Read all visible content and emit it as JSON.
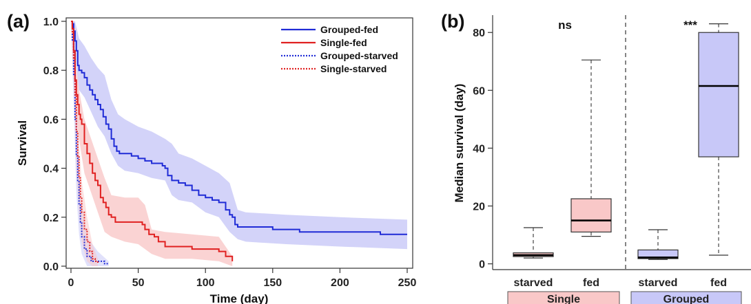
{
  "chart_data": [
    {
      "panel_label": "(a)",
      "type": "line",
      "xlabel": "Time (day)",
      "ylabel": "Survival",
      "xlim": [
        0,
        250
      ],
      "ylim": [
        0,
        1
      ],
      "xticks": [
        "0",
        "50",
        "100",
        "150",
        "200",
        "250"
      ],
      "yticks": [
        "0.0",
        "0.2",
        "0.4",
        "0.6",
        "0.8",
        "1.0"
      ],
      "legend_position": "top-right",
      "series": [
        {
          "name": "Grouped-fed",
          "color": "#1f2bd6",
          "dashed": false,
          "band_color": "#c8c8f8",
          "points": [
            [
              0,
              1.0
            ],
            [
              1,
              0.99
            ],
            [
              2,
              0.96
            ],
            [
              3,
              0.92
            ],
            [
              4,
              0.88
            ],
            [
              5,
              0.82
            ],
            [
              6,
              0.8
            ],
            [
              8,
              0.79
            ],
            [
              10,
              0.77
            ],
            [
              12,
              0.74
            ],
            [
              14,
              0.72
            ],
            [
              16,
              0.7
            ],
            [
              18,
              0.68
            ],
            [
              20,
              0.66
            ],
            [
              22,
              0.64
            ],
            [
              24,
              0.61
            ],
            [
              26,
              0.58
            ],
            [
              28,
              0.56
            ],
            [
              30,
              0.52
            ],
            [
              32,
              0.49
            ],
            [
              34,
              0.47
            ],
            [
              36,
              0.46
            ],
            [
              40,
              0.46
            ],
            [
              45,
              0.45
            ],
            [
              50,
              0.44
            ],
            [
              55,
              0.43
            ],
            [
              60,
              0.42
            ],
            [
              65,
              0.42
            ],
            [
              68,
              0.41
            ],
            [
              70,
              0.4
            ],
            [
              72,
              0.37
            ],
            [
              75,
              0.35
            ],
            [
              80,
              0.34
            ],
            [
              85,
              0.33
            ],
            [
              90,
              0.31
            ],
            [
              95,
              0.29
            ],
            [
              100,
              0.28
            ],
            [
              105,
              0.27
            ],
            [
              110,
              0.26
            ],
            [
              115,
              0.23
            ],
            [
              118,
              0.21
            ],
            [
              120,
              0.2
            ],
            [
              122,
              0.17
            ],
            [
              124,
              0.16
            ],
            [
              130,
              0.16
            ],
            [
              150,
              0.15
            ],
            [
              170,
              0.14
            ],
            [
              200,
              0.14
            ],
            [
              230,
              0.13
            ],
            [
              250,
              0.13
            ]
          ],
          "band": [
            [
              0,
              1.0,
              1.0
            ],
            [
              3,
              1.0,
              0.86
            ],
            [
              6,
              0.93,
              0.72
            ],
            [
              10,
              0.9,
              0.69
            ],
            [
              15,
              0.85,
              0.63
            ],
            [
              20,
              0.81,
              0.57
            ],
            [
              25,
              0.78,
              0.53
            ],
            [
              30,
              0.68,
              0.46
            ],
            [
              35,
              0.62,
              0.41
            ],
            [
              40,
              0.6,
              0.39
            ],
            [
              50,
              0.57,
              0.38
            ],
            [
              60,
              0.55,
              0.36
            ],
            [
              70,
              0.52,
              0.35
            ],
            [
              75,
              0.5,
              0.29
            ],
            [
              80,
              0.46,
              0.27
            ],
            [
              90,
              0.44,
              0.26
            ],
            [
              100,
              0.41,
              0.22
            ],
            [
              110,
              0.38,
              0.2
            ],
            [
              118,
              0.34,
              0.14
            ],
            [
              124,
              0.23,
              0.11
            ],
            [
              130,
              0.22,
              0.1
            ],
            [
              160,
              0.21,
              0.09
            ],
            [
              200,
              0.2,
              0.08
            ],
            [
              250,
              0.19,
              0.07
            ]
          ]
        },
        {
          "name": "Single-fed",
          "color": "#e02020",
          "dashed": false,
          "band_color": "#f9c8c8",
          "points": [
            [
              0,
              1.0
            ],
            [
              1,
              0.97
            ],
            [
              2,
              0.88
            ],
            [
              3,
              0.76
            ],
            [
              4,
              0.7
            ],
            [
              5,
              0.66
            ],
            [
              6,
              0.62
            ],
            [
              7,
              0.6
            ],
            [
              8,
              0.58
            ],
            [
              10,
              0.5
            ],
            [
              12,
              0.46
            ],
            [
              14,
              0.42
            ],
            [
              16,
              0.38
            ],
            [
              18,
              0.35
            ],
            [
              20,
              0.33
            ],
            [
              22,
              0.28
            ],
            [
              24,
              0.26
            ],
            [
              26,
              0.24
            ],
            [
              28,
              0.21
            ],
            [
              30,
              0.2
            ],
            [
              33,
              0.18
            ],
            [
              40,
              0.18
            ],
            [
              50,
              0.18
            ],
            [
              53,
              0.17
            ],
            [
              55,
              0.15
            ],
            [
              58,
              0.13
            ],
            [
              62,
              0.12
            ],
            [
              65,
              0.1
            ],
            [
              70,
              0.08
            ],
            [
              80,
              0.08
            ],
            [
              90,
              0.07
            ],
            [
              100,
              0.07
            ],
            [
              110,
              0.06
            ],
            [
              115,
              0.04
            ],
            [
              120,
              0.02
            ]
          ],
          "band": [
            [
              0,
              1.0,
              1.0
            ],
            [
              3,
              0.85,
              0.66
            ],
            [
              6,
              0.72,
              0.52
            ],
            [
              10,
              0.6,
              0.38
            ],
            [
              15,
              0.52,
              0.3
            ],
            [
              20,
              0.44,
              0.22
            ],
            [
              25,
              0.36,
              0.14
            ],
            [
              30,
              0.29,
              0.12
            ],
            [
              40,
              0.28,
              0.1
            ],
            [
              50,
              0.28,
              0.09
            ],
            [
              55,
              0.25,
              0.07
            ],
            [
              60,
              0.15,
              0.05
            ],
            [
              70,
              0.14,
              0.03
            ],
            [
              90,
              0.13,
              0.03
            ],
            [
              110,
              0.12,
              0.02
            ],
            [
              120,
              0.04,
              0.0
            ]
          ]
        },
        {
          "name": "Grouped-starved",
          "color": "#1f2bd6",
          "dashed": true,
          "band_color": "#c8c8f8",
          "points": [
            [
              0,
              1.0
            ],
            [
              1,
              0.92
            ],
            [
              2,
              0.78
            ],
            [
              3,
              0.6
            ],
            [
              4,
              0.45
            ],
            [
              5,
              0.35
            ],
            [
              6,
              0.25
            ],
            [
              7,
              0.18
            ],
            [
              8,
              0.12
            ],
            [
              10,
              0.07
            ],
            [
              12,
              0.04
            ],
            [
              15,
              0.02
            ],
            [
              20,
              0.02
            ],
            [
              25,
              0.01
            ],
            [
              28,
              0.01
            ]
          ],
          "band": [
            [
              0,
              1.0,
              1.0
            ],
            [
              2,
              0.9,
              0.66
            ],
            [
              4,
              0.62,
              0.3
            ],
            [
              6,
              0.4,
              0.13
            ],
            [
              8,
              0.25,
              0.05
            ],
            [
              12,
              0.12,
              0.0
            ],
            [
              20,
              0.06,
              0.0
            ],
            [
              28,
              0.02,
              0.0
            ]
          ]
        },
        {
          "name": "Single-starved",
          "color": "#e02020",
          "dashed": true,
          "band_color": "#f9c8c8",
          "points": [
            [
              0,
              1.0
            ],
            [
              1,
              0.95
            ],
            [
              2,
              0.85
            ],
            [
              3,
              0.7
            ],
            [
              4,
              0.55
            ],
            [
              5,
              0.45
            ],
            [
              6,
              0.36
            ],
            [
              7,
              0.28
            ],
            [
              8,
              0.22
            ],
            [
              10,
              0.15
            ],
            [
              12,
              0.1
            ],
            [
              14,
              0.06
            ],
            [
              16,
              0.03
            ],
            [
              18,
              0.02
            ],
            [
              20,
              0.01
            ]
          ],
          "band": [
            [
              0,
              1.0,
              1.0
            ],
            [
              2,
              0.95,
              0.75
            ],
            [
              4,
              0.7,
              0.4
            ],
            [
              6,
              0.5,
              0.22
            ],
            [
              8,
              0.35,
              0.1
            ],
            [
              12,
              0.2,
              0.02
            ],
            [
              16,
              0.09,
              0.0
            ],
            [
              20,
              0.03,
              0.0
            ]
          ]
        }
      ]
    },
    {
      "panel_label": "(b)",
      "type": "box",
      "ylabel": "Median survival (day)",
      "ylim": [
        -2,
        86
      ],
      "yticks": [
        "0",
        "20",
        "40",
        "60",
        "80"
      ],
      "boxes": [
        {
          "label": "starved",
          "group": "Single",
          "color": "#f9c8c8",
          "whisker_low": 2,
          "q1": 2.5,
          "median": 3,
          "q3": 3.8,
          "whisker_high": 12.5
        },
        {
          "label": "fed",
          "group": "Single",
          "color": "#f9c8c8",
          "whisker_low": 9.5,
          "q1": 11,
          "median": 15,
          "q3": 22.5,
          "whisker_high": 70.5
        },
        {
          "label": "starved",
          "group": "Grouped",
          "color": "#c8c8f8",
          "whisker_low": 1.5,
          "q1": 1.8,
          "median": 2.2,
          "q3": 4.8,
          "whisker_high": 11.8
        },
        {
          "label": "fed",
          "group": "Grouped",
          "color": "#c8c8f8",
          "whisker_low": 3,
          "q1": 37,
          "median": 61.5,
          "q3": 80,
          "whisker_high": 83
        }
      ],
      "groups": [
        {
          "label": "Single",
          "color": "#f9c8c8"
        },
        {
          "label": "Grouped",
          "color": "#c8c8f8"
        }
      ],
      "annotations": [
        {
          "text": "ns",
          "group": "Single"
        },
        {
          "text": "***",
          "group": "Grouped"
        }
      ]
    }
  ]
}
